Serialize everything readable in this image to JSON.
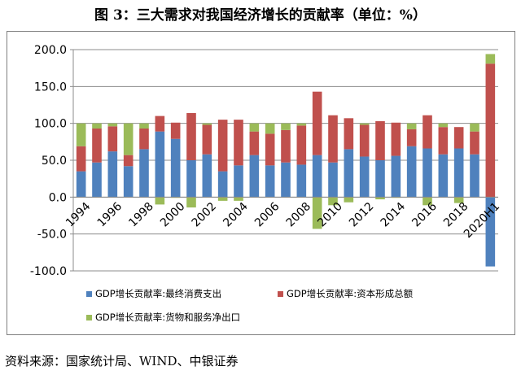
{
  "title": "图 3：三大需求对我国经济增长的贡献率（单位：%）",
  "source": "资料来源：国家统计局、WIND、中银证券",
  "chart_data": {
    "type": "bar",
    "stacked": true,
    "title": "",
    "xlabel": "",
    "ylabel": "",
    "ylim": [
      -100,
      200
    ],
    "yticks": [
      -100,
      -50,
      0,
      50,
      100,
      150,
      200
    ],
    "ytick_labels": [
      "-100.0",
      "-50.0",
      "0.0",
      "50.0",
      "100.0",
      "150.0",
      "200.0"
    ],
    "grid": true,
    "legend_position": "bottom",
    "categories": [
      "1994",
      "1995",
      "1996",
      "1997",
      "1998",
      "1999",
      "2000",
      "2001",
      "2002",
      "2003",
      "2004",
      "2005",
      "2006",
      "2007",
      "2008",
      "2009",
      "2010",
      "2011",
      "2012",
      "2013",
      "2014",
      "2015",
      "2016",
      "2017",
      "2018",
      "2019",
      "2020H1"
    ],
    "x_tick_labels": [
      "1994",
      "",
      "1996",
      "",
      "1998",
      "",
      "2000",
      "",
      "2002",
      "",
      "2004",
      "",
      "2006",
      "",
      "2008",
      "",
      "2010",
      "",
      "2012",
      "",
      "2014",
      "",
      "2016",
      "",
      "2018",
      "",
      "2020H1"
    ],
    "series": [
      {
        "name": "GDP增长贡献率:最终消费支出",
        "color": "#4f81bd",
        "values": [
          35,
          47,
          62,
          42,
          65,
          89,
          79,
          50,
          58,
          35,
          43,
          57,
          43,
          47,
          44,
          57,
          47,
          65,
          55,
          50,
          56,
          69,
          66,
          58,
          66,
          58,
          -94
        ]
      },
      {
        "name": "GDP增长贡献率:资本形成总额",
        "color": "#c0504d",
        "values": [
          34,
          46,
          34,
          15,
          28,
          21,
          22,
          64,
          40,
          70,
          62,
          32,
          43,
          44,
          53,
          86,
          64,
          42,
          43,
          53,
          45,
          23,
          45,
          37,
          29,
          31,
          181
        ]
      },
      {
        "name": "GDP增长贡献率:货物和服务净出口",
        "color": "#9bbb59",
        "values": [
          31,
          7,
          4,
          43,
          7,
          -10,
          -1,
          -14,
          2,
          -5,
          -5,
          11,
          14,
          9,
          3,
          -43,
          -11,
          -7,
          2,
          -3,
          -1,
          8,
          -11,
          5,
          -8,
          11,
          13
        ]
      }
    ]
  }
}
